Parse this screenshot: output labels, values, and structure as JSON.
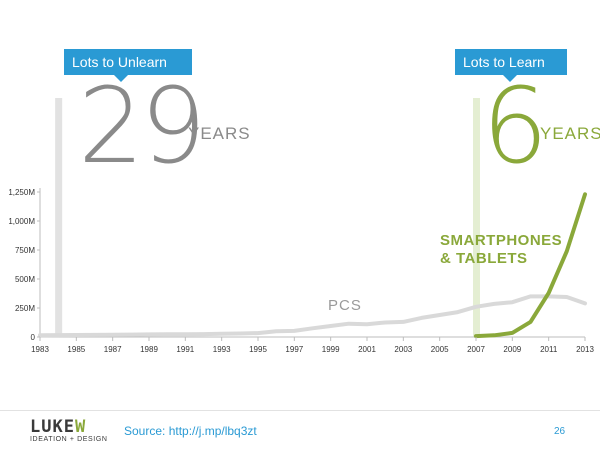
{
  "callouts": {
    "unlearn": "Lots to Unlearn",
    "learn": "Lots to Learn"
  },
  "headlines": {
    "pc_years_number": "29",
    "pc_years_unit": "YEARS",
    "smart_years_number": "6",
    "smart_years_unit": "YEARS"
  },
  "series_labels": {
    "pcs": "PCS",
    "smartphones_line1": "SMARTPHONES",
    "smartphones_line2": "& TABLETS"
  },
  "footer": {
    "logo_word_a": "LUKE",
    "logo_word_b": "W",
    "logo_tagline": "IDEATION + DESIGN",
    "source": "Source: http://j.mp/lbq3zt",
    "page_number": "26"
  },
  "colors": {
    "pc_series": "#d9d9d9",
    "smart_series": "#8aa83a",
    "pc_marker": "#e2e2e2",
    "smart_marker": "#e4eed2",
    "callout": "#2a9ad4"
  },
  "chart_data": {
    "type": "line",
    "title": "",
    "xlabel": "",
    "ylabel": "",
    "x_ticks": [
      "1983",
      "1985",
      "1987",
      "1989",
      "1991",
      "1993",
      "1995",
      "1997",
      "1999",
      "2001",
      "2003",
      "2005",
      "2007",
      "2009",
      "2011",
      "2013"
    ],
    "y_ticks": [
      "0",
      "250M",
      "500M",
      "750M",
      "1,000M",
      "1,250M"
    ],
    "xlim": [
      1983,
      2013
    ],
    "ylim": [
      0,
      1250
    ],
    "y_unit": "millions",
    "grid": false,
    "markers": [
      {
        "name": "pc_start",
        "x": 1984
      },
      {
        "name": "smart_start",
        "x": 2007
      }
    ],
    "series": [
      {
        "name": "PCS",
        "x": [
          1983,
          1984,
          1985,
          1986,
          1987,
          1988,
          1989,
          1990,
          1991,
          1992,
          1993,
          1994,
          1995,
          1996,
          1997,
          1998,
          1999,
          2000,
          2001,
          2002,
          2003,
          2004,
          2005,
          2006,
          2007,
          2008,
          2009,
          2010,
          2011,
          2012,
          2013
        ],
        "values": [
          15,
          16,
          17,
          18,
          20,
          21,
          22,
          23,
          24,
          25,
          28,
          30,
          34,
          50,
          53,
          75,
          95,
          115,
          110,
          125,
          130,
          165,
          190,
          215,
          260,
          285,
          300,
          350,
          350,
          345,
          290
        ]
      },
      {
        "name": "SMARTPHONES & TABLETS",
        "x": [
          2007,
          2008,
          2009,
          2010,
          2011,
          2012,
          2013
        ],
        "values": [
          8,
          15,
          35,
          130,
          380,
          740,
          1230
        ]
      }
    ]
  }
}
